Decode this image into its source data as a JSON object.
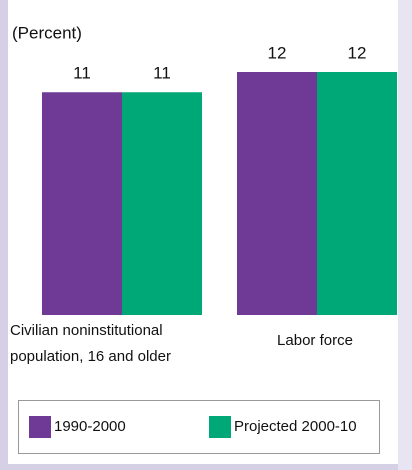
{
  "chart_data": {
    "type": "bar",
    "subtitle": "(Percent)",
    "categories": [
      "Civilian noninstitutional population, 16 and older",
      "Labor force"
    ],
    "series": [
      {
        "name": "1990-2000",
        "color": "#6f3a96",
        "values": [
          11,
          12
        ]
      },
      {
        "name": "Projected 2000-10",
        "color": "#00a878",
        "values": [
          11,
          12
        ]
      }
    ],
    "ylim": [
      0,
      12
    ]
  }
}
